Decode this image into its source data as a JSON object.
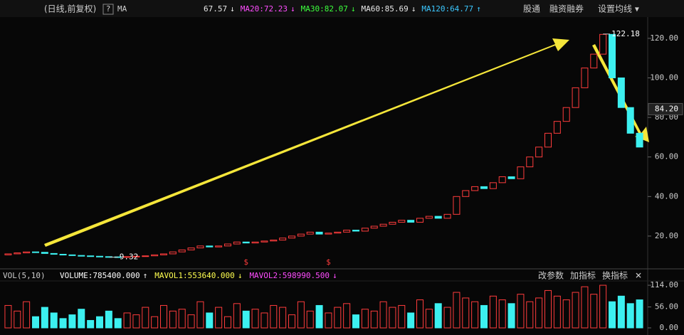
{
  "header": {
    "period": "(日线,前复权)",
    "help": "?",
    "ma_title": "MA",
    "ma": [
      {
        "text": "67.57",
        "arrow": "↓",
        "color": "#e8e8e8"
      },
      {
        "text": "MA20:72.23",
        "arrow": "↓",
        "color": "#ff4cff"
      },
      {
        "text": "MA30:82.07",
        "arrow": "↓",
        "color": "#3cff3c"
      },
      {
        "text": "MA60:85.69",
        "arrow": "↓",
        "color": "#e8e8e8"
      },
      {
        "text": "MA120:64.77",
        "arrow": "↑",
        "color": "#3cc8ff"
      }
    ],
    "tabs": [
      "股通",
      "融资融券",
      "设置均线 ▾"
    ]
  },
  "chart_data": [
    {
      "type": "candlestick",
      "ylim": [
        4.5,
        123.2
      ],
      "yticks": [
        {
          "value": 120,
          "label": "120.00"
        },
        {
          "value": 100,
          "label": "100.00"
        },
        {
          "value": 80,
          "label": "80.00"
        },
        {
          "value": 60,
          "label": "60.00"
        },
        {
          "value": 40,
          "label": "40.00"
        },
        {
          "value": 20,
          "label": "20.00"
        }
      ],
      "up_color": "#ff3c3c",
      "down_color": "#3cf0f0",
      "open": [
        10.5,
        11,
        11.5,
        12,
        11.8,
        11.2,
        10.8,
        10.5,
        10.2,
        10,
        9.8,
        9.6,
        9.5,
        9.4,
        9.6,
        9.8,
        10,
        10.5,
        11,
        12,
        13,
        14,
        15,
        14.5,
        15,
        16,
        17,
        16.5,
        17,
        17.5,
        18,
        19,
        20,
        21,
        22,
        21,
        21.5,
        22,
        23,
        22.5,
        24,
        25,
        26,
        27,
        28,
        27,
        29,
        30,
        29,
        31,
        40,
        43,
        45,
        44,
        47,
        50,
        49,
        55,
        60,
        65,
        72,
        78,
        85,
        95,
        105,
        112,
        122,
        100,
        85,
        72
      ],
      "close": [
        11,
        11.5,
        12,
        11.8,
        11.2,
        10.8,
        10.5,
        10.2,
        10,
        9.8,
        9.6,
        9.5,
        9.4,
        9.6,
        9.8,
        10,
        10.5,
        11,
        12,
        13,
        14,
        15,
        14.5,
        15,
        16,
        17,
        16.5,
        17,
        17.5,
        18,
        19,
        20,
        21,
        22,
        21,
        21.5,
        22,
        23,
        22.5,
        24,
        25,
        26,
        27,
        28,
        27,
        29,
        30,
        29,
        31,
        40,
        43,
        45,
        44,
        47,
        50,
        49,
        55,
        60,
        65,
        72,
        78,
        85,
        95,
        105,
        112,
        122,
        100,
        85,
        72,
        65
      ],
      "annotations": [
        {
          "text": "122.18",
          "value": 122.18,
          "index": 65
        },
        {
          "text": "84.20",
          "value": 84.2
        },
        {
          "text": "9.32",
          "value": 9.32,
          "index": 12
        }
      ],
      "markers": [
        {
          "text": "$",
          "index": 26
        },
        {
          "text": "$",
          "index": 35
        }
      ]
    },
    {
      "type": "bar",
      "title": "VOL(5,10)",
      "legend": [
        {
          "text": "VOLUME:785400.000",
          "arrow": "↑",
          "color": "#ffffff"
        },
        {
          "text": "MAVOL1:553640.000",
          "arrow": "↓",
          "color": "#ffff50"
        },
        {
          "text": "MAVOL2:598990.500",
          "arrow": "↓",
          "color": "#ff4cff"
        }
      ],
      "buttons": [
        "改参数",
        "加指标",
        "换指标",
        "✕"
      ],
      "ylim": [
        0,
        116
      ],
      "yticks": [
        {
          "value": 114,
          "label": "114.00"
        },
        {
          "value": 56,
          "label": "56.00"
        },
        {
          "value": 0,
          "label": "0.00"
        }
      ],
      "values": [
        60,
        45,
        70,
        30,
        55,
        40,
        25,
        35,
        50,
        20,
        30,
        45,
        25,
        40,
        35,
        55,
        30,
        60,
        45,
        50,
        35,
        70,
        40,
        55,
        30,
        65,
        45,
        50,
        40,
        60,
        55,
        35,
        70,
        45,
        60,
        40,
        55,
        65,
        35,
        50,
        45,
        70,
        55,
        60,
        40,
        75,
        50,
        65,
        55,
        95,
        80,
        70,
        60,
        85,
        75,
        65,
        90,
        70,
        80,
        100,
        85,
        75,
        95,
        110,
        90,
        114,
        70,
        85,
        65,
        75
      ]
    }
  ]
}
